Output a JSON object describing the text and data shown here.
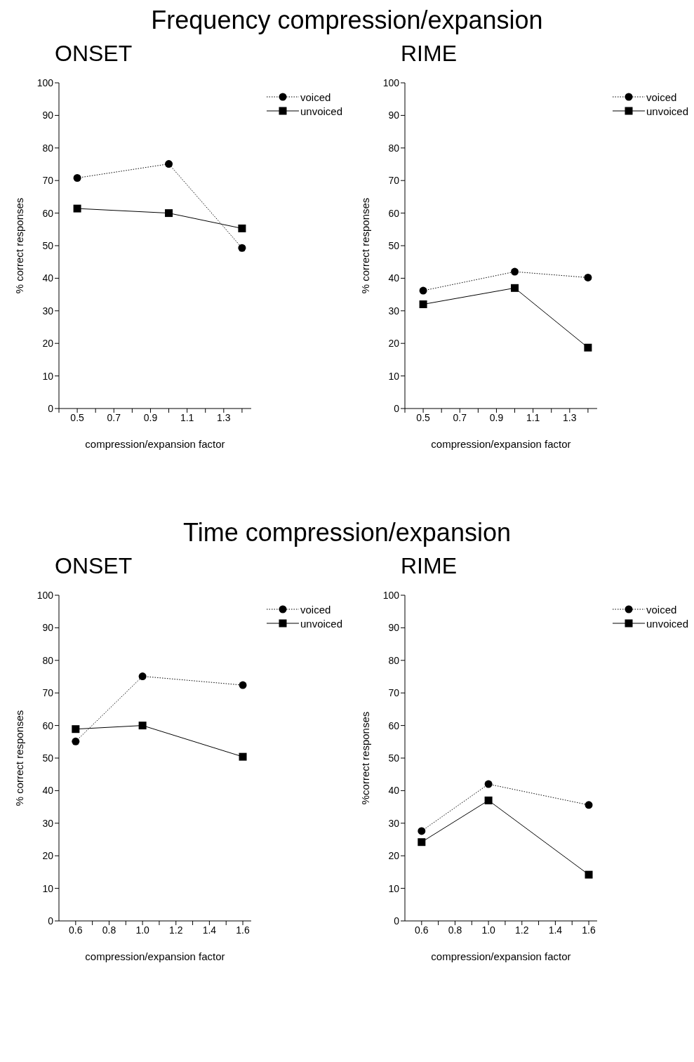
{
  "chart_data": [
    {
      "type": "line",
      "title": "ONSET",
      "annotations": [
        "Frequency compression/expansion"
      ],
      "xlabel": "compression/expansion factor",
      "ylabel": "% correct responses",
      "x": [
        0.5,
        1.0,
        1.4
      ],
      "xlim": [
        0.4,
        1.45
      ],
      "xticks": [
        {
          "value": 0.4,
          "label": null
        },
        0.5,
        {
          "value": 0.6,
          "label": null
        },
        0.7,
        {
          "value": 0.8,
          "label": null
        },
        0.9,
        {
          "value": 1.0,
          "label": null
        },
        1.1,
        {
          "value": 1.2,
          "label": null
        },
        1.3,
        {
          "value": 1.4,
          "label": null
        }
      ],
      "ylim": [
        0,
        100
      ],
      "yticks": [
        0,
        10,
        20,
        30,
        40,
        50,
        60,
        70,
        80,
        90,
        100
      ],
      "legend": "top right",
      "grid": false,
      "series": [
        {
          "name": "voiced",
          "color": "#000000",
          "marker": "circle",
          "line_style": "dotted",
          "values": [
            70.8,
            75.1,
            49.3
          ]
        },
        {
          "name": "unvoiced",
          "color": "#000000",
          "marker": "square",
          "line_style": "solid",
          "values": [
            61.4,
            60,
            55.3
          ]
        }
      ]
    },
    {
      "type": "line",
      "title": "RIME",
      "xlabel": "compression/expansion factor",
      "ylabel": "% correct responses",
      "x": [
        0.5,
        1.0,
        1.4
      ],
      "xlim": [
        0.4,
        1.45
      ],
      "xticks": [
        {
          "value": 0.4,
          "label": null
        },
        0.5,
        {
          "value": 0.6,
          "label": null
        },
        0.7,
        {
          "value": 0.8,
          "label": null
        },
        0.9,
        {
          "value": 1.0,
          "label": null
        },
        1.1,
        {
          "value": 1.2,
          "label": null
        },
        1.3,
        {
          "value": 1.4,
          "label": null
        }
      ],
      "ylim": [
        0,
        100
      ],
      "yticks": [
        0,
        10,
        20,
        30,
        40,
        50,
        60,
        70,
        80,
        90,
        100
      ],
      "legend": "top right",
      "grid": false,
      "series": [
        {
          "name": "voiced",
          "color": "#000000",
          "marker": "circle",
          "line_style": "dotted",
          "values": [
            36.2,
            42,
            40.2
          ]
        },
        {
          "name": "unvoiced",
          "color": "#000000",
          "marker": "square",
          "line_style": "solid",
          "values": [
            32,
            37,
            18.7
          ]
        }
      ]
    },
    {
      "type": "line",
      "title": "ONSET",
      "annotations": [
        "Time compression/expansion"
      ],
      "xlabel": "compression/expansion factor",
      "ylabel": "% correct responses",
      "x": [
        0.6,
        1.0,
        1.6
      ],
      "xlim": [
        0.5,
        1.65
      ],
      "xticks": [
        0.6,
        {
          "value": 0.7,
          "label": null
        },
        0.8,
        {
          "value": 0.9,
          "label": null
        },
        {
          "value": 1.0,
          "label": "1.0"
        },
        {
          "value": 1.1,
          "label": null
        },
        {
          "value": 1.2,
          "label": "1.2"
        },
        {
          "value": 1.3,
          "label": null
        },
        {
          "value": 1.4,
          "label": "1.4"
        },
        {
          "value": 1.5,
          "label": null
        },
        {
          "value": 1.6,
          "label": "1.6"
        }
      ],
      "ylim": [
        0,
        100
      ],
      "yticks": [
        0,
        10,
        20,
        30,
        40,
        50,
        60,
        70,
        80,
        90,
        100
      ],
      "legend": "top right",
      "grid": false,
      "series": [
        {
          "name": "voiced",
          "color": "#000000",
          "marker": "circle",
          "line_style": "dotted",
          "values": [
            55.1,
            75.1,
            72.4
          ]
        },
        {
          "name": "unvoiced",
          "color": "#000000",
          "marker": "square",
          "line_style": "solid",
          "values": [
            58.9,
            60,
            50.4
          ]
        }
      ]
    },
    {
      "type": "line",
      "title": "RIME",
      "xlabel": "compression/expansion factor",
      "ylabel": "%correct responses",
      "x": [
        0.6,
        1.0,
        1.6
      ],
      "xlim": [
        0.5,
        1.65
      ],
      "xticks": [
        0.6,
        {
          "value": 0.7,
          "label": null
        },
        0.8,
        {
          "value": 0.9,
          "label": null
        },
        {
          "value": 1.0,
          "label": "1.0"
        },
        {
          "value": 1.1,
          "label": null
        },
        {
          "value": 1.2,
          "label": "1.2"
        },
        {
          "value": 1.3,
          "label": null
        },
        {
          "value": 1.4,
          "label": "1.4"
        },
        {
          "value": 1.5,
          "label": null
        },
        {
          "value": 1.6,
          "label": "1.6"
        }
      ],
      "ylim": [
        0,
        100
      ],
      "yticks": [
        0,
        10,
        20,
        30,
        40,
        50,
        60,
        70,
        80,
        90,
        100
      ],
      "legend": "top right",
      "grid": false,
      "series": [
        {
          "name": "voiced",
          "color": "#000000",
          "marker": "circle",
          "line_style": "dotted",
          "values": [
            27.6,
            42,
            35.6
          ]
        },
        {
          "name": "unvoiced",
          "color": "#000000",
          "marker": "square",
          "line_style": "solid",
          "values": [
            24.2,
            37,
            14.2
          ]
        }
      ]
    }
  ]
}
